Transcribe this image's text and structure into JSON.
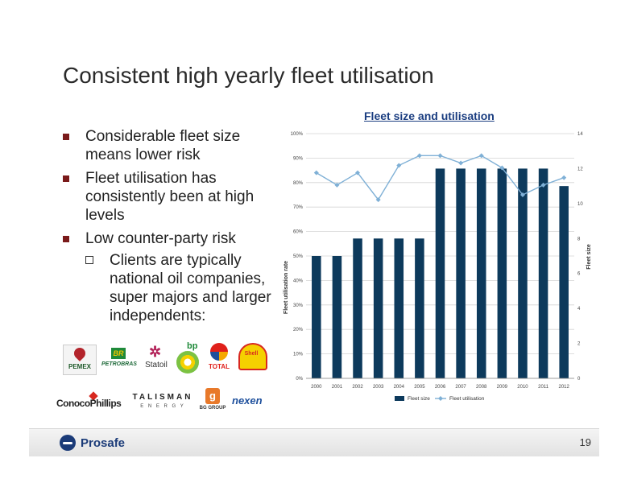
{
  "slide": {
    "title": "Consistent high yearly fleet utilisation",
    "page_number": "19"
  },
  "bullets": [
    {
      "text": "Considerable fleet size means lower risk"
    },
    {
      "text": "Fleet utilisation has consistently been at high levels"
    },
    {
      "text": "Low counter-party risk"
    }
  ],
  "sub_bullets": [
    {
      "text": "Clients are typically national oil companies, super majors and larger independents:"
    }
  ],
  "logos": {
    "pemex": "PEMEX",
    "petrobras": "PETROBRAS",
    "statoil": "Statoil",
    "bp": "bp",
    "total": "TOTAL",
    "shell": "Shell",
    "conocophillips": "ConocoPhillips",
    "talisman": "TALISMAN",
    "talisman_sub": "E N E R G Y",
    "bggroup": "BG GROUP",
    "nexen": "nexen"
  },
  "footer": {
    "company": "Prosafe"
  },
  "colors": {
    "bar": "#0d3a5c",
    "line": "#7fb0d6",
    "chart_title": "#1a3d80",
    "bullet": "#7a1a1a"
  },
  "chart_data": {
    "type": "bar",
    "title": "Fleet size and utilisation",
    "ylabel": "Fleet utilisation rate",
    "y2label": "Fleet size",
    "categories": [
      "2000",
      "2001",
      "2002",
      "2003",
      "2004",
      "2005",
      "2006",
      "2007",
      "2008",
      "2009",
      "2010",
      "2011",
      "2012"
    ],
    "series": [
      {
        "name": "Fleet size",
        "type": "bar",
        "axis": "right",
        "values": [
          7,
          7,
          8,
          8,
          8,
          8,
          12,
          12,
          12,
          12,
          12,
          12,
          11
        ]
      },
      {
        "name": "Fleet utilisation",
        "type": "line",
        "axis": "left",
        "values": [
          84,
          79,
          84,
          73,
          87,
          91,
          91,
          88,
          91,
          86,
          75,
          79,
          82
        ]
      }
    ],
    "ylim": [
      0,
      100
    ],
    "y2lim": [
      0,
      14
    ],
    "yticks": [
      "0%",
      "10%",
      "20%",
      "30%",
      "40%",
      "50%",
      "60%",
      "70%",
      "80%",
      "90%",
      "100%"
    ],
    "y2ticks": [
      "0",
      "2",
      "4",
      "6",
      "8",
      "10",
      "12",
      "14"
    ],
    "grid": true,
    "legend": "bottom"
  }
}
